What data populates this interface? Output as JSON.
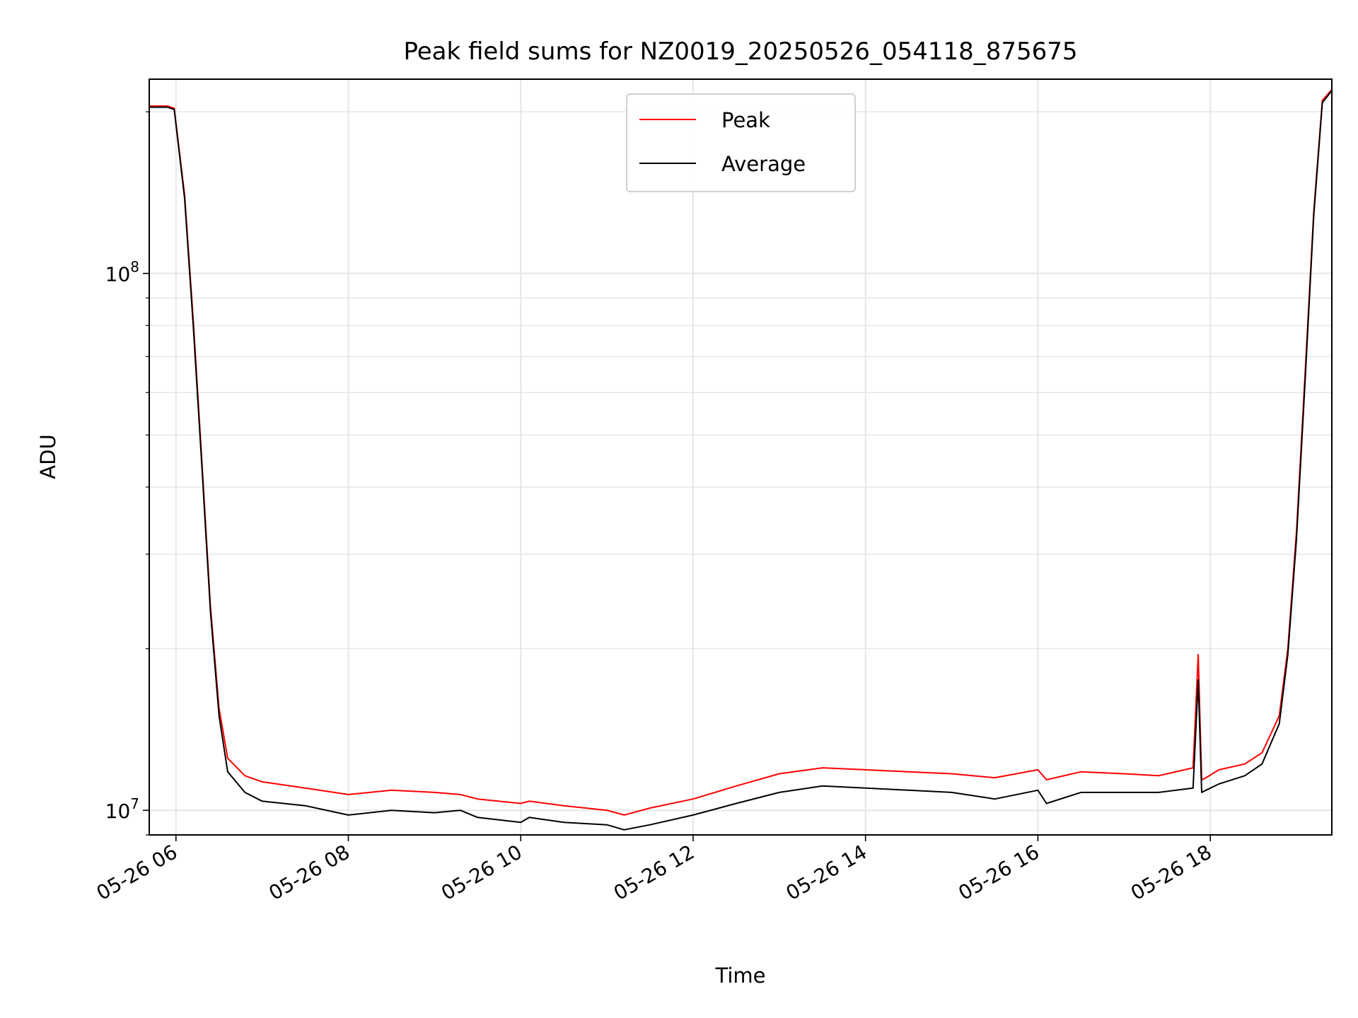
{
  "chart_data": {
    "type": "line",
    "title": "Peak field sums for NZ0019_20250526_054118_875675",
    "xlabel": "Time",
    "ylabel": "ADU",
    "y_scale": "log",
    "x_tick_labels": [
      "05-26 06",
      "05-26 08",
      "05-26 10",
      "05-26 12",
      "05-26 14",
      "05-26 16",
      "05-26 18"
    ],
    "x_tick_hours": [
      6,
      8,
      10,
      12,
      14,
      16,
      18
    ],
    "y_tick_labels": [
      {
        "base": "10",
        "exp": "7",
        "value": 10000000
      },
      {
        "base": "10",
        "exp": "8",
        "value": 100000000
      }
    ],
    "xlim_hours": [
      5.69,
      19.41
    ],
    "ylim": [
      9000000,
      230000000
    ],
    "grid": true,
    "legend_position": "upper center",
    "series": [
      {
        "name": "Peak",
        "color": "#ff0000",
        "time_hours": [
          5.69,
          5.9,
          5.98,
          6.1,
          6.2,
          6.3,
          6.4,
          6.5,
          6.6,
          6.8,
          7.0,
          7.5,
          8.0,
          8.5,
          9.0,
          9.3,
          9.5,
          10.0,
          10.1,
          10.5,
          11.0,
          11.2,
          11.5,
          12.0,
          12.5,
          13.0,
          13.5,
          14.0,
          14.5,
          15.0,
          15.5,
          16.0,
          16.1,
          16.5,
          17.0,
          17.4,
          17.8,
          17.86,
          17.9,
          17.95,
          18.1,
          18.4,
          18.6,
          18.8,
          18.9,
          19.0,
          19.1,
          19.2,
          19.3,
          19.41
        ],
        "values": [
          205000000,
          205000000,
          203000000,
          140000000,
          82000000,
          45000000,
          24000000,
          15500000,
          12500000,
          11600000,
          11300000,
          11000000,
          10700000,
          10900000,
          10800000,
          10700000,
          10500000,
          10300000,
          10400000,
          10200000,
          10000000,
          9800000,
          10100000,
          10500000,
          11100000,
          11700000,
          12000000,
          11900000,
          11800000,
          11700000,
          11500000,
          11900000,
          11400000,
          11800000,
          11700000,
          11600000,
          12000000,
          19500000,
          11400000,
          11500000,
          11900000,
          12200000,
          12800000,
          15000000,
          20000000,
          33000000,
          65000000,
          130000000,
          210000000,
          220000000
        ]
      },
      {
        "name": "Average",
        "color": "#000000",
        "time_hours": [
          5.69,
          5.9,
          5.98,
          6.1,
          6.2,
          6.3,
          6.4,
          6.5,
          6.6,
          6.8,
          7.0,
          7.5,
          8.0,
          8.5,
          9.0,
          9.3,
          9.5,
          10.0,
          10.1,
          10.5,
          11.0,
          11.2,
          11.5,
          12.0,
          12.5,
          13.0,
          13.5,
          14.0,
          14.5,
          15.0,
          15.5,
          16.0,
          16.1,
          16.5,
          17.0,
          17.4,
          17.8,
          17.86,
          17.9,
          17.95,
          18.1,
          18.4,
          18.6,
          18.8,
          18.9,
          19.0,
          19.1,
          19.2,
          19.3,
          19.41
        ],
        "values": [
          204000000,
          204000000,
          202000000,
          138000000,
          80000000,
          44000000,
          23500000,
          15000000,
          11800000,
          10800000,
          10400000,
          10200000,
          9800000,
          10000000,
          9900000,
          10000000,
          9700000,
          9500000,
          9700000,
          9500000,
          9400000,
          9200000,
          9400000,
          9800000,
          10300000,
          10800000,
          11100000,
          11000000,
          10900000,
          10800000,
          10500000,
          10900000,
          10300000,
          10800000,
          10800000,
          10800000,
          11000000,
          17500000,
          10800000,
          10900000,
          11200000,
          11600000,
          12200000,
          14500000,
          19500000,
          32000000,
          63000000,
          128000000,
          208000000,
          219000000
        ]
      }
    ]
  }
}
